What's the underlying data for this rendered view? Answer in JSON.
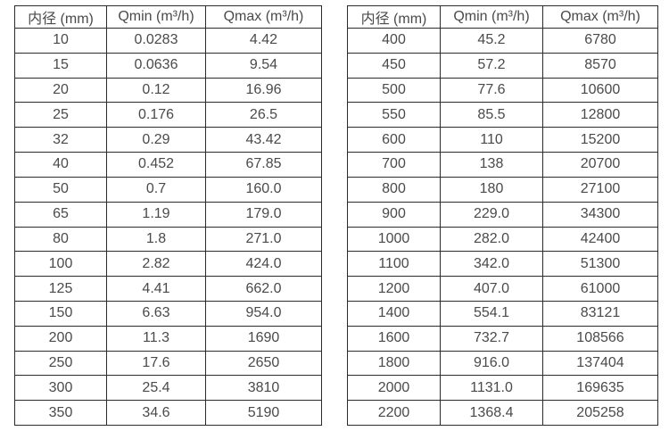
{
  "page": {
    "background_color": "#ffffff",
    "text_color": "#4a4a4a",
    "border_color": "#2b2b2b"
  },
  "tables": [
    {
      "headers": [
        "内径 (mm)",
        "Qmin (m³/h)",
        "Qmax (m³/h)"
      ],
      "rows": [
        [
          "10",
          "0.0283",
          "4.42"
        ],
        [
          "15",
          "0.0636",
          "9.54"
        ],
        [
          "20",
          "0.12",
          "16.96"
        ],
        [
          "25",
          "0.176",
          "26.5"
        ],
        [
          "32",
          "0.29",
          "43.42"
        ],
        [
          "40",
          "0.452",
          "67.85"
        ],
        [
          "50",
          "0.7",
          "160.0"
        ],
        [
          "65",
          "1.19",
          "179.0"
        ],
        [
          "80",
          "1.8",
          "271.0"
        ],
        [
          "100",
          "2.82",
          "424.0"
        ],
        [
          "125",
          "4.41",
          "662.0"
        ],
        [
          "150",
          "6.63",
          "954.0"
        ],
        [
          "200",
          "11.3",
          "1690"
        ],
        [
          "250",
          "17.6",
          "2650"
        ],
        [
          "300",
          "25.4",
          "3810"
        ],
        [
          "350",
          "34.6",
          "5190"
        ]
      ]
    },
    {
      "headers": [
        "内径 (mm)",
        "Qmin (m³/h)",
        "Qmax (m³/h)"
      ],
      "rows": [
        [
          "400",
          "45.2",
          "6780"
        ],
        [
          "450",
          "57.2",
          "8570"
        ],
        [
          "500",
          "77.6",
          "10600"
        ],
        [
          "550",
          "85.5",
          "12800"
        ],
        [
          "600",
          "110",
          "15200"
        ],
        [
          "700",
          "138",
          "20700"
        ],
        [
          "800",
          "180",
          "27100"
        ],
        [
          "900",
          "229.0",
          "34300"
        ],
        [
          "1000",
          "282.0",
          "42400"
        ],
        [
          "1100",
          "342.0",
          "51300"
        ],
        [
          "1200",
          "407.0",
          "61000"
        ],
        [
          "1400",
          "554.1",
          "83121"
        ],
        [
          "1600",
          "732.7",
          "108566"
        ],
        [
          "1800",
          "916.0",
          "137404"
        ],
        [
          "2000",
          "1131.0",
          "169635"
        ],
        [
          "2200",
          "1368.4",
          "205258"
        ]
      ]
    }
  ],
  "chart_data": [
    {
      "type": "table",
      "title": "",
      "columns": [
        "内径 (mm)",
        "Qmin (m³/h)",
        "Qmax (m³/h)"
      ],
      "rows": [
        [
          10,
          0.0283,
          4.42
        ],
        [
          15,
          0.0636,
          9.54
        ],
        [
          20,
          0.12,
          16.96
        ],
        [
          25,
          0.176,
          26.5
        ],
        [
          32,
          0.29,
          43.42
        ],
        [
          40,
          0.452,
          67.85
        ],
        [
          50,
          0.7,
          160.0
        ],
        [
          65,
          1.19,
          179.0
        ],
        [
          80,
          1.8,
          271.0
        ],
        [
          100,
          2.82,
          424.0
        ],
        [
          125,
          4.41,
          662.0
        ],
        [
          150,
          6.63,
          954.0
        ],
        [
          200,
          11.3,
          1690
        ],
        [
          250,
          17.6,
          2650
        ],
        [
          300,
          25.4,
          3810
        ],
        [
          350,
          34.6,
          5190
        ]
      ]
    },
    {
      "type": "table",
      "title": "",
      "columns": [
        "内径 (mm)",
        "Qmin (m³/h)",
        "Qmax (m³/h)"
      ],
      "rows": [
        [
          400,
          45.2,
          6780
        ],
        [
          450,
          57.2,
          8570
        ],
        [
          500,
          77.6,
          10600
        ],
        [
          550,
          85.5,
          12800
        ],
        [
          600,
          110,
          15200
        ],
        [
          700,
          138,
          20700
        ],
        [
          800,
          180,
          27100
        ],
        [
          900,
          229.0,
          34300
        ],
        [
          1000,
          282.0,
          42400
        ],
        [
          1100,
          342.0,
          51300
        ],
        [
          1200,
          407.0,
          61000
        ],
        [
          1400,
          554.1,
          83121
        ],
        [
          1600,
          732.7,
          108566
        ],
        [
          1800,
          916.0,
          137404
        ],
        [
          2000,
          1131.0,
          169635
        ],
        [
          2200,
          1368.4,
          205258
        ]
      ]
    }
  ]
}
